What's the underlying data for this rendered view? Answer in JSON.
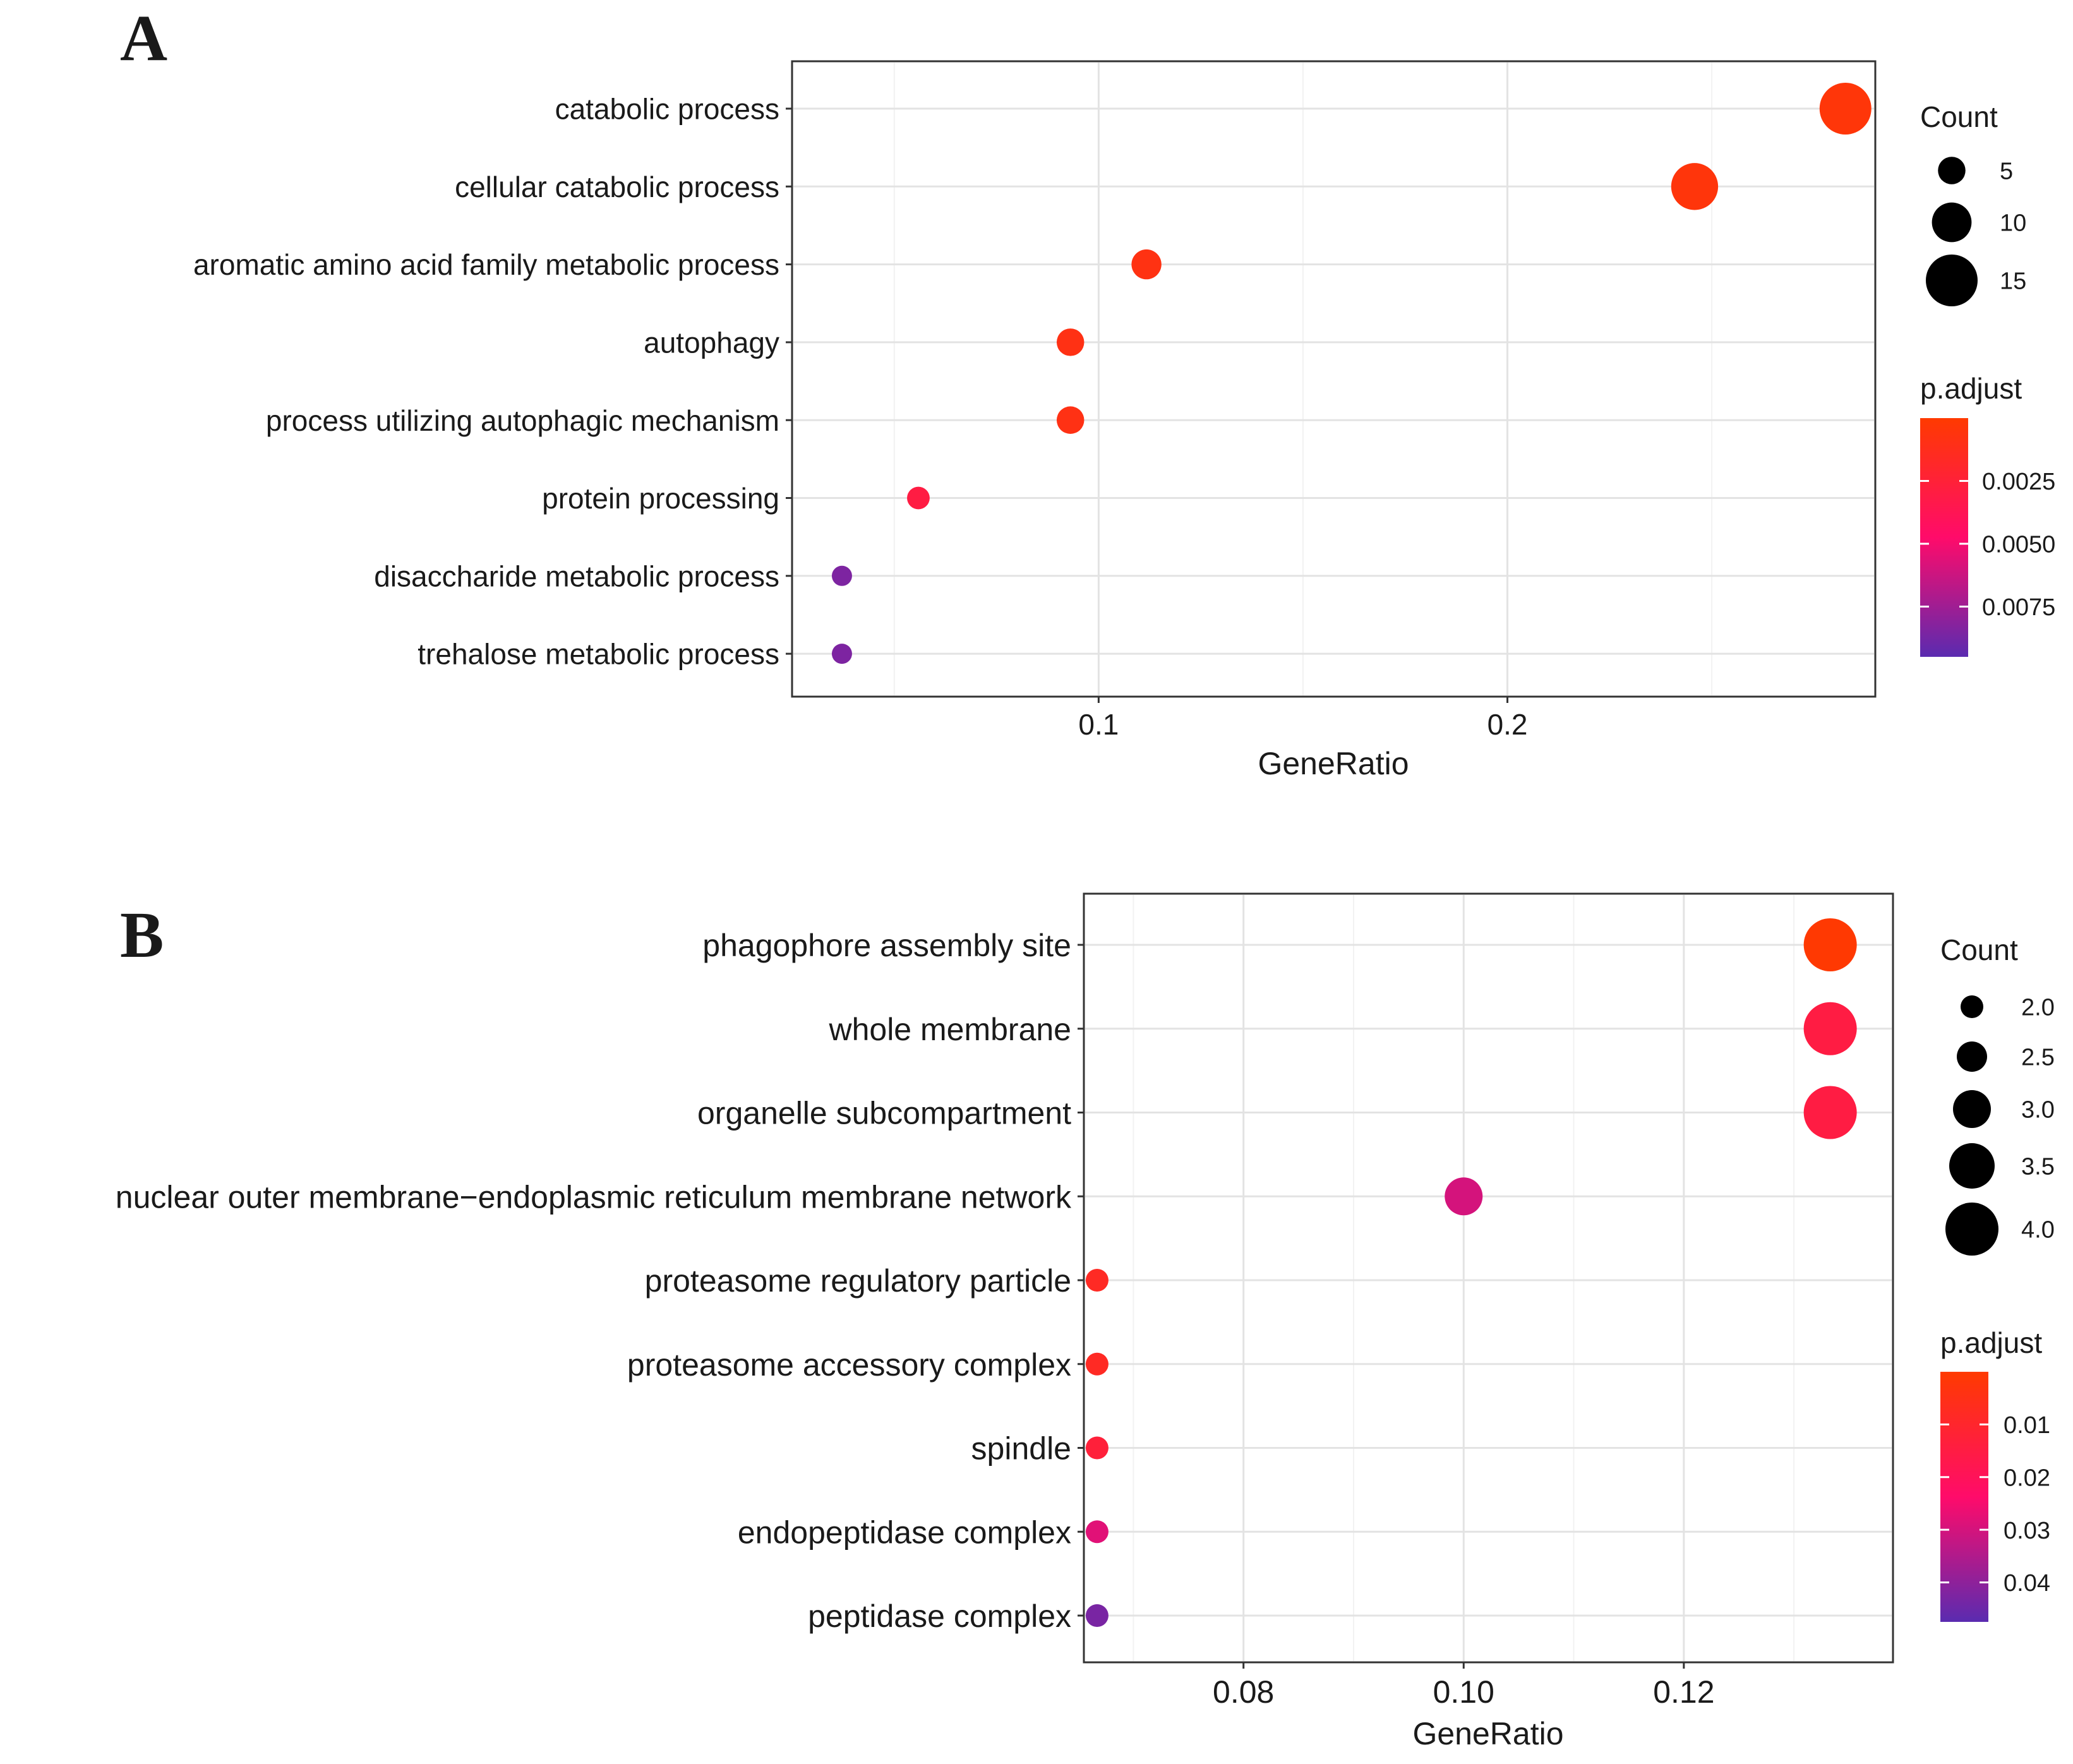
{
  "chart_data": [
    {
      "panel_label": "A",
      "type": "scatter",
      "subtype": "dot-plot",
      "xlabel": "GeneRatio",
      "ylabel": "",
      "xlim": [
        0.025,
        0.29
      ],
      "xticks": [
        0.1,
        0.2
      ],
      "xtick_labels": [
        "0.1",
        "0.2"
      ],
      "grid": true,
      "legend_position": "right",
      "categories": [
        "catabolic process",
        "cellular catabolic process",
        "aromatic amino acid family metabolic process",
        "autophagy",
        "process utilizing autophagic mechanism",
        "protein processing",
        "disaccharide metabolic process",
        "trehalose metabolic process"
      ],
      "gene_ratio": [
        0.2827,
        0.2458,
        0.1117,
        0.0931,
        0.0931,
        0.0559,
        0.0372,
        0.0372
      ],
      "count": [
        15,
        13,
        6,
        5,
        5,
        3,
        2,
        2
      ],
      "p_adjust": [
        0.0004,
        0.0005,
        0.0008,
        0.0009,
        0.0009,
        0.003,
        0.0085,
        0.0085
      ],
      "size_legend": {
        "title": "Count",
        "values": [
          5,
          10,
          15
        ],
        "labels": [
          "5",
          "10",
          "15"
        ]
      },
      "color_legend": {
        "title": "p.adjust",
        "min": 0.0,
        "max": 0.0095,
        "ticks": [
          0.0025,
          0.005,
          0.0075
        ],
        "tick_labels": [
          "0.0025",
          "0.0050",
          "0.0075"
        ],
        "low_color": "#ff3a00",
        "mid_color": "#ff0b6a",
        "high_color": "#5a2bb0"
      }
    },
    {
      "panel_label": "B",
      "type": "scatter",
      "subtype": "dot-plot",
      "xlabel": "GeneRatio",
      "ylabel": "",
      "xlim": [
        0.0655,
        0.139
      ],
      "xticks": [
        0.08,
        0.1,
        0.12
      ],
      "xtick_labels": [
        "0.08",
        "0.10",
        "0.12"
      ],
      "grid": true,
      "legend_position": "right",
      "categories": [
        "phagophore assembly site",
        "whole membrane",
        "organelle subcompartment",
        "nuclear outer membrane−endoplasmic reticulum membrane network",
        "proteasome regulatory particle",
        "proteasome accessory complex",
        "spindle",
        "endopeptidase complex",
        "peptidase complex"
      ],
      "gene_ratio": [
        0.1333,
        0.1333,
        0.1333,
        0.1,
        0.0667,
        0.0667,
        0.0667,
        0.0667,
        0.0667
      ],
      "count": [
        4,
        4,
        4,
        3,
        2,
        2,
        2,
        2,
        2
      ],
      "p_adjust": [
        0.0005,
        0.015,
        0.015,
        0.03,
        0.008,
        0.008,
        0.013,
        0.028,
        0.043
      ],
      "size_legend": {
        "title": "Count",
        "values": [
          2.0,
          2.5,
          3.0,
          3.5,
          4.0
        ],
        "labels": [
          "2.0",
          "2.5",
          "3.0",
          "3.5",
          "4.0"
        ]
      },
      "color_legend": {
        "title": "p.adjust",
        "min": 0.0,
        "max": 0.0475,
        "ticks": [
          0.01,
          0.02,
          0.03,
          0.04
        ],
        "tick_labels": [
          "0.01",
          "0.02",
          "0.03",
          "0.04"
        ],
        "low_color": "#ff3a00",
        "mid_color": "#ff0b6a",
        "high_color": "#5a2bb0"
      }
    }
  ]
}
